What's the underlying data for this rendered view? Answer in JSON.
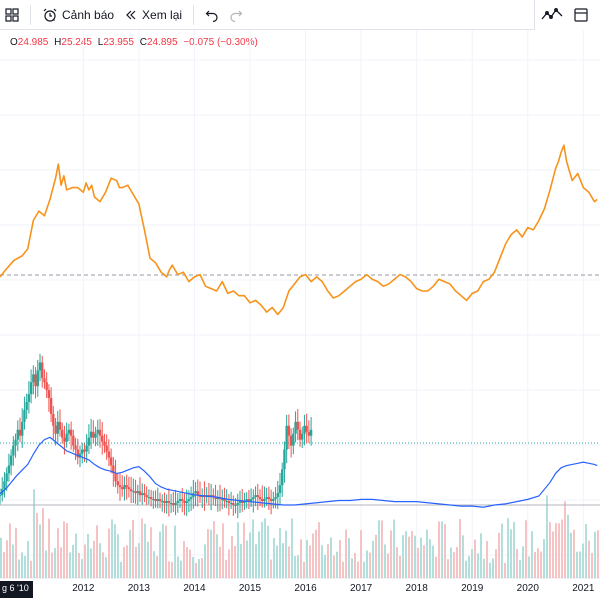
{
  "toolbar": {
    "layout_icon": "grid-layout-icon",
    "alert_label": "Cảnh báo",
    "alert_icon": "alarm-clock-icon",
    "replay_label": "Xem lại",
    "replay_icon": "rewind-icon",
    "undo_icon": "undo-icon",
    "redo_icon": "redo-icon",
    "chart_type_icon": "line-chart-icon"
  },
  "legend": {
    "open_key": "O",
    "open": "24.985",
    "high_key": "H",
    "high": "25.245",
    "low_key": "L",
    "low": "23.955",
    "close_key": "C",
    "close": "24.895",
    "change": "−0.075 (−0.30%)"
  },
  "colors": {
    "compare_line": "#f7931a",
    "ma_line": "#2962ff",
    "up_candle": "#26a69a",
    "down_candle": "#ef5350",
    "up_volume": "#b2dfdb",
    "down_volume": "#f5c3c3",
    "price_line": "#26a69a",
    "reference_line": "#9598a1"
  },
  "chart_data": {
    "type": "candlestick",
    "xlabel": "",
    "ylabel": "",
    "x_ticks": [
      "2012",
      "2013",
      "2014",
      "2015",
      "2016",
      "2017",
      "2018",
      "2019",
      "2020",
      "2021"
    ],
    "current_date_label": "g 6 '10",
    "series": [
      {
        "name": "",
        "kind": "compare-line",
        "x": [
          2010.5,
          2010.6,
          2010.75,
          2010.9,
          2011.0,
          2011.1,
          2011.2,
          2011.3,
          2011.4,
          2011.5,
          2011.55,
          2011.6,
          2011.65,
          2011.7,
          2011.8,
          2011.9,
          2012.0,
          2012.05,
          2012.1,
          2012.15,
          2012.2,
          2012.3,
          2012.4,
          2012.5,
          2012.6,
          2012.65,
          2012.7,
          2012.8,
          2012.9,
          2013.0,
          2013.1,
          2013.2,
          2013.3,
          2013.4,
          2013.5,
          2013.55,
          2013.6,
          2013.7,
          2013.8,
          2013.9,
          2014.0,
          2014.1,
          2014.2,
          2014.3,
          2014.4,
          2014.5,
          2014.6,
          2014.7,
          2014.8,
          2014.9,
          2015.0,
          2015.1,
          2015.2,
          2015.3,
          2015.4,
          2015.5,
          2015.6,
          2015.7,
          2015.8,
          2015.9,
          2016.0,
          2016.1,
          2016.2,
          2016.3,
          2016.4,
          2016.5,
          2016.6,
          2016.7,
          2016.8,
          2016.9,
          2017.0,
          2017.1,
          2017.2,
          2017.3,
          2017.4,
          2017.5,
          2017.6,
          2017.7,
          2017.8,
          2017.9,
          2018.0,
          2018.1,
          2018.2,
          2018.3,
          2018.4,
          2018.5,
          2018.6,
          2018.7,
          2018.8,
          2018.9,
          2019.0,
          2019.1,
          2019.2,
          2019.3,
          2019.4,
          2019.5,
          2019.6,
          2019.7,
          2019.8,
          2019.9,
          2020.0,
          2020.1,
          2020.2,
          2020.3,
          2020.4,
          2020.5,
          2020.55,
          2020.6,
          2020.65,
          2020.7,
          2020.8,
          2020.9,
          2021.0,
          2021.1,
          2021.2,
          2021.25
        ],
        "y": [
          0.46,
          0.49,
          0.53,
          0.55,
          0.58,
          0.7,
          0.74,
          0.72,
          0.79,
          0.88,
          0.94,
          0.85,
          0.89,
          0.83,
          0.84,
          0.84,
          0.82,
          0.86,
          0.83,
          0.85,
          0.8,
          0.78,
          0.82,
          0.88,
          0.87,
          0.84,
          0.84,
          0.85,
          0.81,
          0.77,
          0.66,
          0.54,
          0.52,
          0.48,
          0.46,
          0.49,
          0.51,
          0.47,
          0.48,
          0.44,
          0.46,
          0.47,
          0.42,
          0.41,
          0.4,
          0.44,
          0.39,
          0.4,
          0.38,
          0.38,
          0.35,
          0.36,
          0.34,
          0.31,
          0.33,
          0.3,
          0.33,
          0.4,
          0.43,
          0.46,
          0.47,
          0.44,
          0.46,
          0.44,
          0.4,
          0.37,
          0.38,
          0.4,
          0.42,
          0.44,
          0.45,
          0.47,
          0.45,
          0.44,
          0.42,
          0.43,
          0.45,
          0.47,
          0.46,
          0.44,
          0.41,
          0.4,
          0.4,
          0.42,
          0.45,
          0.44,
          0.43,
          0.4,
          0.38,
          0.36,
          0.39,
          0.4,
          0.44,
          0.45,
          0.48,
          0.54,
          0.6,
          0.64,
          0.66,
          0.63,
          0.67,
          0.66,
          0.7,
          0.75,
          0.83,
          0.92,
          0.95,
          0.99,
          1.02,
          0.95,
          0.87,
          0.9,
          0.84,
          0.82,
          0.78,
          0.79
        ]
      },
      {
        "name": "",
        "kind": "moving-average",
        "x": [
          2010.5,
          2010.6,
          2010.7,
          2010.8,
          2010.9,
          2011.0,
          2011.1,
          2011.2,
          2011.3,
          2011.4,
          2011.5,
          2011.6,
          2011.7,
          2011.8,
          2011.9,
          2012.0,
          2012.1,
          2012.2,
          2012.3,
          2012.4,
          2012.5,
          2012.6,
          2012.7,
          2012.8,
          2012.9,
          2013.0,
          2013.1,
          2013.2,
          2013.3,
          2013.4,
          2013.5,
          2013.6,
          2013.7,
          2013.8,
          2013.9,
          2014.0,
          2014.2,
          2014.4,
          2014.6,
          2014.8,
          2015.0,
          2015.2,
          2015.4,
          2015.6,
          2015.8,
          2016.0,
          2016.2,
          2016.4,
          2016.6,
          2016.8,
          2017.0,
          2017.2,
          2017.4,
          2017.6,
          2017.8,
          2018.0,
          2018.2,
          2018.4,
          2018.6,
          2018.8,
          2019.0,
          2019.2,
          2019.4,
          2019.6,
          2019.8,
          2020.0,
          2020.2,
          2020.4,
          2020.5,
          2020.6,
          2020.7,
          2020.8,
          2020.9,
          2021.0,
          2021.1,
          2021.2,
          2021.25
        ],
        "y": [
          0.1,
          0.14,
          0.2,
          0.26,
          0.31,
          0.36,
          0.45,
          0.53,
          0.58,
          0.6,
          0.56,
          0.52,
          0.48,
          0.46,
          0.44,
          0.42,
          0.4,
          0.36,
          0.33,
          0.31,
          0.3,
          0.28,
          0.29,
          0.31,
          0.33,
          0.34,
          0.3,
          0.25,
          0.19,
          0.16,
          0.14,
          0.13,
          0.12,
          0.11,
          0.1,
          0.09,
          0.08,
          0.07,
          0.05,
          0.04,
          0.03,
          0.02,
          0.01,
          0.0,
          0.0,
          0.01,
          0.02,
          0.03,
          0.04,
          0.04,
          0.05,
          0.05,
          0.04,
          0.03,
          0.03,
          0.03,
          0.02,
          0.01,
          0.0,
          -0.01,
          -0.01,
          -0.02,
          0.0,
          0.01,
          0.03,
          0.05,
          0.08,
          0.2,
          0.28,
          0.33,
          0.35,
          0.36,
          0.37,
          0.38,
          0.37,
          0.36,
          0.35
        ]
      }
    ],
    "candles": {
      "note": "normalized weekly close path, values 0..1 of price range",
      "x_start": 2010.5,
      "x_step": 0.04,
      "close": [
        0.05,
        0.08,
        0.12,
        0.16,
        0.2,
        0.25,
        0.3,
        0.33,
        0.38,
        0.35,
        0.42,
        0.48,
        0.52,
        0.56,
        0.62,
        0.66,
        0.6,
        0.68,
        0.72,
        0.64,
        0.62,
        0.58,
        0.54,
        0.46,
        0.4,
        0.36,
        0.42,
        0.38,
        0.34,
        0.32,
        0.36,
        0.38,
        0.35,
        0.3,
        0.28,
        0.24,
        0.26,
        0.28,
        0.27,
        0.3,
        0.34,
        0.37,
        0.34,
        0.36,
        0.38,
        0.35,
        0.32,
        0.3,
        0.27,
        0.24,
        0.2,
        0.16,
        0.12,
        0.1,
        0.09,
        0.08,
        0.1,
        0.09,
        0.08,
        0.07,
        0.07,
        0.06,
        0.07,
        0.05,
        0.06,
        0.05,
        0.04,
        0.04,
        0.03,
        0.03,
        0.02,
        0.03,
        0.02,
        0.02,
        0.01,
        0.02,
        0.01,
        0.01,
        0.0,
        0.01,
        0.02,
        0.03,
        0.02,
        0.01,
        0.02,
        0.03,
        0.04,
        0.06,
        0.07,
        0.05,
        0.04,
        0.05,
        0.04,
        0.05,
        0.04,
        0.05,
        0.04,
        0.03,
        0.04,
        0.03,
        0.03,
        0.02,
        0.02,
        0.01,
        0.01,
        0.0,
        0.0,
        0.01,
        0.02,
        0.01,
        0.02,
        0.03,
        0.02,
        0.03,
        0.04,
        0.05,
        0.04,
        0.03,
        0.02,
        0.03,
        0.04,
        0.03,
        0.02,
        0.03,
        0.04,
        0.06,
        0.1,
        0.18,
        0.28,
        0.4,
        0.35,
        0.3,
        0.36,
        0.42,
        0.38,
        0.33,
        0.36,
        0.4,
        0.37,
        0.35,
        0.38
      ]
    },
    "volume_note": "relative volume bars",
    "reference_levels": [
      {
        "name": "",
        "kind": "dashed",
        "y": 0.56
      },
      {
        "name": "",
        "kind": "dotted-price",
        "y": 0.11
      }
    ]
  }
}
